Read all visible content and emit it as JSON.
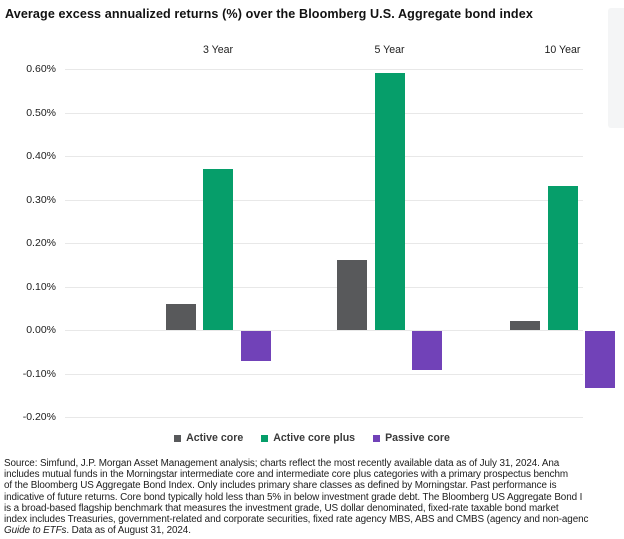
{
  "chart_data": {
    "type": "bar",
    "title": "Average excess annualized returns (%) over the Bloomberg U.S. Aggregate bond index",
    "categories": [
      "3 Year",
      "5 Year",
      "10 Year"
    ],
    "series": [
      {
        "name": "Active core",
        "color": "#58595b",
        "values": [
          0.06,
          0.16,
          0.02
        ]
      },
      {
        "name": "Active core plus",
        "color": "#069e6a",
        "values": [
          0.37,
          0.59,
          0.33
        ]
      },
      {
        "name": "Passive core",
        "color": "#7142b8",
        "values": [
          -0.07,
          -0.09,
          -0.13
        ]
      }
    ],
    "ylim": [
      -0.2,
      0.6
    ],
    "ytick_step": 0.1,
    "ytick_labels": [
      "0.60%",
      "0.50%",
      "0.40%",
      "0.30%",
      "0.20%",
      "0.10%",
      "0.00%",
      "-0.10%",
      "-0.20%"
    ],
    "grid": true,
    "gridline_color": "#e8e8e8",
    "legend_position": "bottom",
    "ylabel": "",
    "xlabel": ""
  },
  "side_fragment_color": "#f4f5f6",
  "footnote": {
    "lines": [
      "Source: Simfund, J.P. Morgan Asset Management analysis; charts reflect the most recently available data as of July 31, 2024. Ana",
      "includes mutual funds in the Morningstar intermediate core and intermediate core plus categories with a primary prospectus benchm",
      "of the Bloomberg US Aggregate Bond Index. Only includes primary share classes as defined by Morningstar. Past performance is",
      "indicative of future returns. Core bond typically hold less than 5% in below investment grade debt. The Bloomberg US Aggregate Bond I",
      "is a broad-based flagship benchmark that measures the investment grade, US dollar denominated, fixed-rate taxable bond market",
      "index includes Treasuries, government-related and corporate securities, fixed rate agency MBS, ABS and CMBS (agency and non-agenc"
    ],
    "last_line": {
      "italic": "Guide to ETFs",
      "rest": ". Data as of August 31, 2024."
    }
  }
}
